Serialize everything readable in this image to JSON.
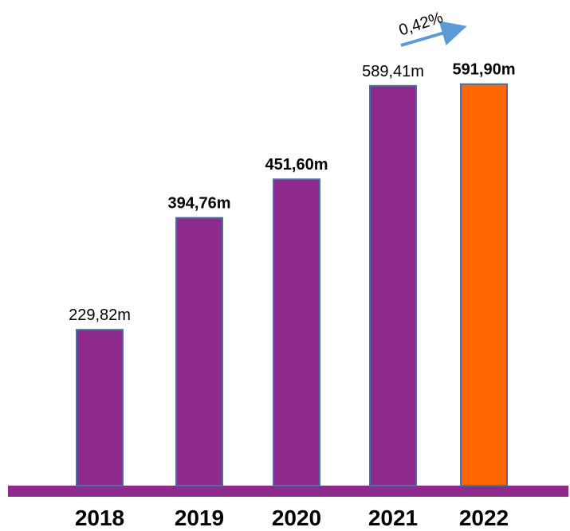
{
  "chart_data": {
    "type": "bar",
    "categories": [
      "2018",
      "2019",
      "2020",
      "2021",
      "2022"
    ],
    "values": [
      229.82,
      394.76,
      451.6,
      589.41,
      591.9
    ],
    "data_labels": [
      "229,82m",
      "394,76m",
      "451,60m",
      "589,41m",
      "591,90m"
    ],
    "bold_labels": [
      false,
      true,
      true,
      false,
      true
    ],
    "bar_colors": [
      "#8e2a8b",
      "#8e2a8b",
      "#8e2a8b",
      "#8e2a8b",
      "#ff6600"
    ],
    "baseline_color": "#8e2a8b",
    "bar_stroke": "#4a6fa5",
    "annotation": {
      "text": "0,42%",
      "arrow_color": "#5b9bd5"
    },
    "grid": false,
    "legend": "none"
  }
}
